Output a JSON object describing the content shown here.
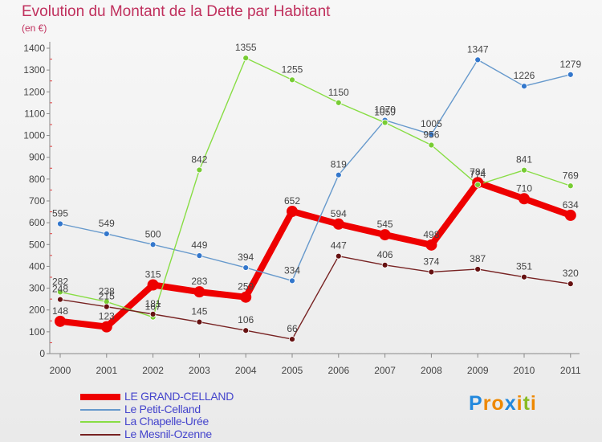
{
  "chart_data": {
    "type": "line",
    "title": "Evolution du Montant de la Dette par Habitant",
    "subtitle": "(en €)",
    "xlabel": "",
    "ylabel": "",
    "ylim": [
      0,
      1400
    ],
    "yticks": [
      0,
      100,
      200,
      300,
      400,
      500,
      600,
      700,
      800,
      900,
      1000,
      1100,
      1200,
      1300,
      1400
    ],
    "categories": [
      "2000",
      "2001",
      "2002",
      "2003",
      "2004",
      "2005",
      "2006",
      "2007",
      "2008",
      "2009",
      "2010",
      "2011"
    ],
    "grid": false,
    "legend_position": "bottom-left",
    "series": [
      {
        "name": "LE GRAND-CELLAND",
        "color": "#ee0000",
        "emphasis": true,
        "values": [
          148,
          123,
          315,
          283,
          259,
          652,
          594,
          545,
          498,
          784,
          710,
          634
        ]
      },
      {
        "name": "Le Petit-Celland",
        "color": "#6699cc",
        "marker": "#3377cc",
        "values": [
          595,
          549,
          500,
          449,
          394,
          334,
          819,
          1070,
          1005,
          1347,
          1226,
          1279
        ]
      },
      {
        "name": "La Chapelle-Urée",
        "color": "#88dd44",
        "marker": "#77cc33",
        "values": [
          282,
          238,
          167,
          842,
          1355,
          1255,
          1150,
          1059,
          956,
          774,
          841,
          769
        ]
      },
      {
        "name": "Le Mesnil-Ozenne",
        "color": "#772222",
        "marker": "#661111",
        "values": [
          248,
          215,
          181,
          145,
          106,
          66,
          447,
          406,
          374,
          387,
          351,
          320
        ]
      }
    ]
  },
  "logo": {
    "letters": [
      "P",
      "r",
      "o",
      "x",
      "i",
      "t",
      "i"
    ],
    "colors": [
      "#2288dd",
      "#ee8800",
      "#ee8800",
      "#2288dd",
      "#ee8800",
      "#88bb22",
      "#ee8800"
    ]
  }
}
